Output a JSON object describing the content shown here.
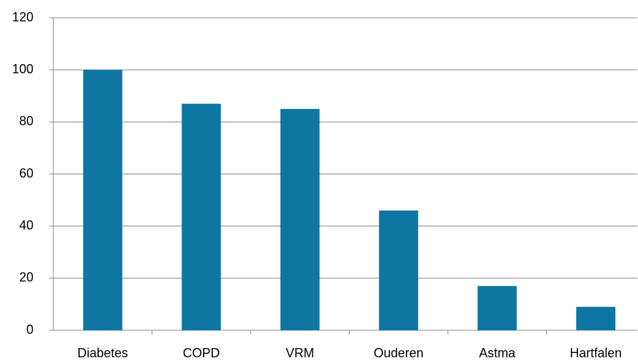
{
  "chart_data": {
    "type": "bar",
    "categories": [
      "Diabetes",
      "COPD",
      "VRM",
      "Ouderen",
      "Astma",
      "Hartfalen"
    ],
    "values": [
      100,
      87,
      85,
      46,
      17,
      9
    ],
    "color": "#0e76a3",
    "ylim": [
      0,
      120
    ],
    "yticks": [
      0,
      20,
      40,
      60,
      80,
      100,
      120
    ],
    "grid": true
  }
}
